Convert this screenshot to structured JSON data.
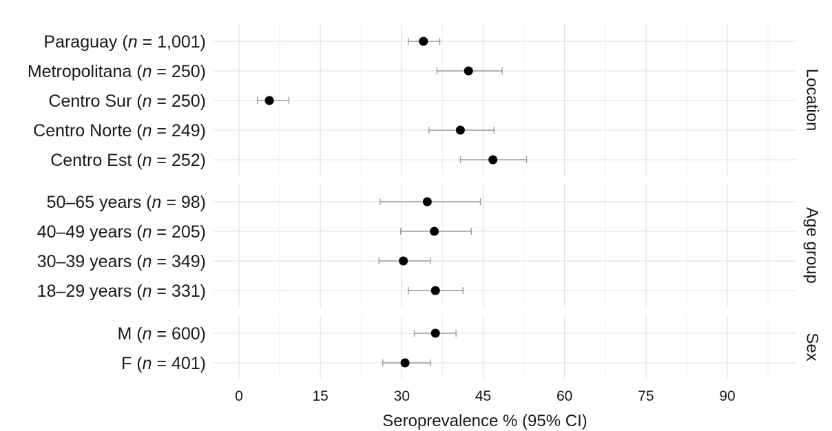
{
  "chart_data": {
    "type": "scatter",
    "xlabel": "Seroprevalence % (95% CI)",
    "xlim": [
      0,
      100
    ],
    "xticks": [
      0,
      15,
      30,
      45,
      60,
      75,
      90
    ],
    "grid": true,
    "panels": [
      {
        "name": "Location",
        "rows": [
          {
            "label": "Paraguay",
            "n": "1,001",
            "estimate": 34,
            "lower": 31.2,
            "upper": 37.0
          },
          {
            "label": "Metropolitana",
            "n": "250",
            "estimate": 42.3,
            "lower": 36.5,
            "upper": 48.5
          },
          {
            "label": "Centro Sur",
            "n": "250",
            "estimate": 5.6,
            "lower": 3.4,
            "upper": 9.2
          },
          {
            "label": "Centro Norte",
            "n": "249",
            "estimate": 40.8,
            "lower": 35.0,
            "upper": 47.0
          },
          {
            "label": "Centro Est",
            "n": "252",
            "estimate": 46.8,
            "lower": 40.8,
            "upper": 53.0
          }
        ]
      },
      {
        "name": "Age group",
        "rows": [
          {
            "label": "50–65 years",
            "n": "98",
            "estimate": 34.7,
            "lower": 26.0,
            "upper": 44.5
          },
          {
            "label": "40–49 years",
            "n": "205",
            "estimate": 36.0,
            "lower": 29.8,
            "upper": 42.8
          },
          {
            "label": "30–39 years",
            "n": "349",
            "estimate": 30.3,
            "lower": 25.8,
            "upper": 35.3
          },
          {
            "label": "18–29 years",
            "n": "331",
            "estimate": 36.2,
            "lower": 31.2,
            "upper": 41.3
          }
        ]
      },
      {
        "name": "Sex",
        "rows": [
          {
            "label": "M",
            "n": "600",
            "estimate": 36.2,
            "lower": 32.3,
            "upper": 40.0
          },
          {
            "label": "F",
            "n": "401",
            "estimate": 30.6,
            "lower": 26.5,
            "upper": 35.3
          }
        ]
      }
    ]
  }
}
